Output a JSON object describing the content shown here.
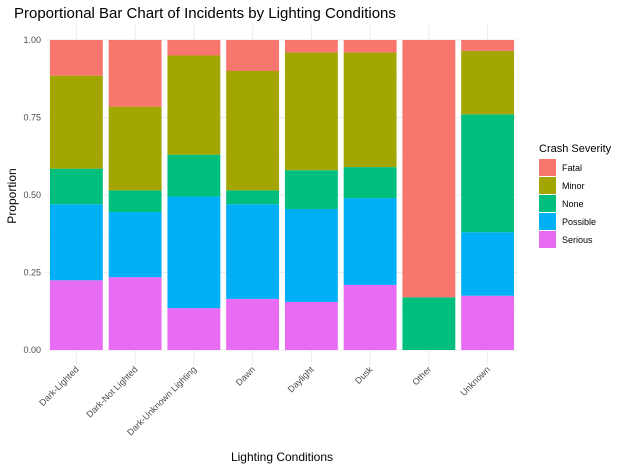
{
  "chart_data": {
    "type": "bar",
    "stacked": "proportional",
    "title": "Proportional Bar Chart of Incidents by Lighting Conditions",
    "xlabel": "Lighting Conditions",
    "ylabel": "Proportion",
    "ylim": [
      0,
      1
    ],
    "y_ticks": [
      "0.00",
      "0.25",
      "0.50",
      "0.75",
      "1.00"
    ],
    "y_tick_values": [
      0,
      0.25,
      0.5,
      0.75,
      1
    ],
    "grid": true,
    "legend_position": "right",
    "legend_title": "Crash Severity",
    "categories": [
      "Dark-Lighted",
      "Dark-Not Lighted",
      "Dark-Unknown Lighting",
      "Dawn",
      "Daylight",
      "Dusk",
      "Other",
      "Unknown"
    ],
    "series": [
      {
        "name": "Fatal",
        "color": "#F8766D",
        "values": [
          0.115,
          0.215,
          0.05,
          0.1,
          0.04,
          0.04,
          0.83,
          0.035
        ]
      },
      {
        "name": "Minor",
        "color": "#A3A500",
        "values": [
          0.3,
          0.27,
          0.32,
          0.385,
          0.38,
          0.37,
          0.0,
          0.205
        ]
      },
      {
        "name": "None",
        "color": "#00BF7D",
        "values": [
          0.115,
          0.07,
          0.135,
          0.045,
          0.125,
          0.1,
          0.17,
          0.38
        ]
      },
      {
        "name": "Possible",
        "color": "#00B0F6",
        "values": [
          0.245,
          0.21,
          0.36,
          0.305,
          0.3,
          0.28,
          0.0,
          0.205
        ]
      },
      {
        "name": "Serious",
        "color": "#E76BF3",
        "values": [
          0.225,
          0.235,
          0.135,
          0.165,
          0.155,
          0.21,
          0.0,
          0.175
        ]
      }
    ]
  }
}
